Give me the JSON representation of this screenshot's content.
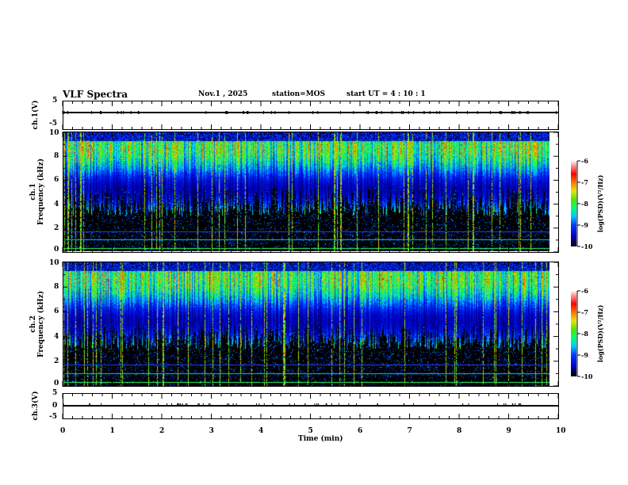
{
  "header": {
    "title": "VLF Spectra",
    "date": "Nov.1 , 2025",
    "station": "station=MOS",
    "start": "start UT = 4 : 10 : 1"
  },
  "colors": {
    "background": "#000000",
    "trace": "#000000"
  },
  "chart_data": [
    {
      "type": "line",
      "name": "ch1-waveform",
      "ylabel": "ch.1(V)",
      "ylim": [
        -5,
        5
      ],
      "yticks": [
        "5",
        "-5"
      ],
      "xlim": [
        0,
        10
      ],
      "values_note": "flat near 0"
    },
    {
      "type": "heatmap",
      "name": "ch1-spectrogram",
      "ylabel": "ch.1\nFrequency (kHz)",
      "ylabel_lines": [
        "ch.1",
        "Frequency (kHz)"
      ],
      "ylim": [
        0,
        10
      ],
      "yticks": [
        "0",
        "2",
        "4",
        "6",
        "8",
        "10"
      ],
      "xlim": [
        0,
        10
      ],
      "colorbar": {
        "label": "log(PSD)(V²/Hz)",
        "ticks": [
          "-6",
          "-7",
          "-8",
          "-9",
          "-10"
        ],
        "range": [
          -10,
          -6
        ]
      }
    },
    {
      "type": "heatmap",
      "name": "ch2-spectrogram",
      "ylabel_lines": [
        "ch.2",
        "Frequency (kHz)"
      ],
      "ylim": [
        0,
        10
      ],
      "yticks": [
        "0",
        "2",
        "4",
        "6",
        "8",
        "10"
      ],
      "xlim": [
        0,
        10
      ],
      "colorbar": {
        "label": "log(PSD)(V²/Hz)",
        "ticks": [
          "-6",
          "-7",
          "-8",
          "-9",
          "-10"
        ],
        "range": [
          -10,
          -6
        ]
      }
    },
    {
      "type": "line",
      "name": "ch3-waveform",
      "ylabel": "ch.3(V)",
      "ylim": [
        -5,
        5
      ],
      "yticks": [
        "5",
        "0",
        "-5"
      ],
      "xlim": [
        0,
        10
      ]
    }
  ],
  "xaxis": {
    "label": "Time (min)",
    "ticks": [
      "0",
      "1",
      "2",
      "3",
      "4",
      "5",
      "6",
      "7",
      "8",
      "9",
      "10"
    ]
  }
}
